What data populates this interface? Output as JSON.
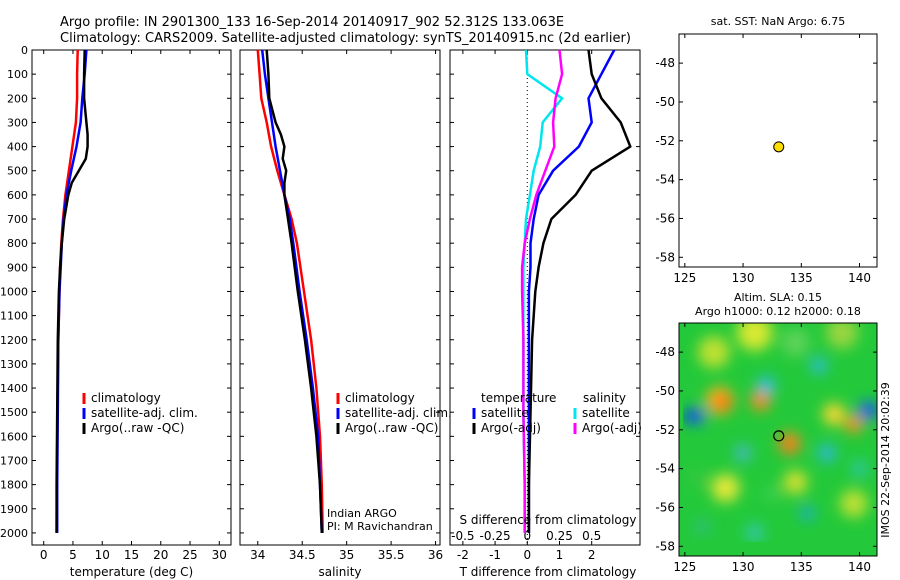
{
  "header": {
    "line1": "Argo profile: IN 2901300_133 16-Sep-2014 20140917_902 52.312S 133.063E",
    "line2": "Climatology: CARS2009. Satellite-adjusted climatology: synTS_20140915.nc (2d earlier)"
  },
  "depth_ticks": [
    0,
    100,
    200,
    300,
    400,
    500,
    600,
    700,
    800,
    900,
    1000,
    1100,
    1200,
    1300,
    1400,
    1500,
    1600,
    1700,
    1800,
    1900,
    2000
  ],
  "colors": {
    "climatology": "#ff0000",
    "satellite": "#0000ff",
    "argo": "#000000",
    "salinity_sat": "#00e5ee",
    "salinity_argo": "#ff00ff",
    "float_marker": "#ffdd00"
  },
  "chart_data": [
    {
      "type": "line",
      "xlabel": "temperature (deg C)",
      "xlim": [
        -2,
        32
      ],
      "ylim": [
        2050,
        0
      ],
      "xticks": [
        0,
        5,
        10,
        15,
        20,
        25,
        30
      ],
      "legend": [
        "climatology",
        "satellite-adj. clim.",
        "Argo(..raw -QC)"
      ],
      "series": [
        {
          "name": "climatology",
          "color": "#ff0000",
          "depth": [
            0,
            100,
            200,
            300,
            400,
            500,
            600,
            700,
            800,
            900,
            1000,
            1200,
            1500,
            1800,
            2000
          ],
          "values": [
            5.8,
            5.7,
            5.7,
            5.5,
            4.9,
            4.3,
            3.7,
            3.3,
            3.0,
            2.8,
            2.7,
            2.5,
            2.35,
            2.25,
            2.2
          ]
        },
        {
          "name": "satellite-adj. clim.",
          "color": "#0000ff",
          "depth": [
            0,
            100,
            200,
            300,
            400,
            500,
            600,
            700,
            800,
            900,
            1000,
            1200,
            1500,
            1800,
            2000
          ],
          "values": [
            7.3,
            7.0,
            6.6,
            6.3,
            5.6,
            4.7,
            3.9,
            3.4,
            3.1,
            2.9,
            2.7,
            2.5,
            2.4,
            2.3,
            2.3
          ]
        },
        {
          "name": "Argo(..raw -QC)",
          "color": "#000000",
          "depth": [
            0,
            100,
            200,
            300,
            350,
            400,
            450,
            500,
            550,
            600,
            700,
            800,
            900,
            1000,
            1200,
            1500,
            1800,
            2000
          ],
          "values": [
            7.0,
            6.9,
            6.9,
            7.3,
            7.5,
            7.5,
            7.2,
            6.0,
            4.8,
            4.2,
            3.5,
            3.1,
            2.8,
            2.6,
            2.4,
            2.3,
            2.2,
            2.2
          ]
        }
      ]
    },
    {
      "type": "line",
      "xlabel": "salinity",
      "xlim": [
        33.8,
        36.05
      ],
      "ylim": [
        2050,
        0
      ],
      "xticks": [
        34,
        34.5,
        35,
        35.5,
        36
      ],
      "legend": [
        "climatology",
        "satellite-adj. clim.",
        "Argo(..raw -QC)"
      ],
      "annotation": [
        "Indian ARGO",
        "PI: M Ravichandran"
      ],
      "series": [
        {
          "name": "climatology",
          "color": "#ff0000",
          "depth": [
            0,
            100,
            200,
            300,
            400,
            500,
            600,
            700,
            800,
            1000,
            1200,
            1400,
            1600,
            1800,
            2000
          ],
          "values": [
            34.0,
            34.02,
            34.04,
            34.1,
            34.15,
            34.22,
            34.3,
            34.38,
            34.44,
            34.52,
            34.6,
            34.66,
            34.7,
            34.72,
            34.73
          ]
        },
        {
          "name": "satellite-adj. clim.",
          "color": "#0000ff",
          "depth": [
            0,
            100,
            200,
            300,
            400,
            500,
            600,
            700,
            800,
            1000,
            1200,
            1400,
            1600,
            1800,
            2000
          ],
          "values": [
            34.05,
            34.08,
            34.12,
            34.16,
            34.2,
            34.25,
            34.3,
            34.36,
            34.4,
            34.47,
            34.55,
            34.62,
            34.68,
            34.7,
            34.72
          ]
        },
        {
          "name": "Argo(..raw -QC)",
          "color": "#000000",
          "depth": [
            0,
            100,
            200,
            300,
            350,
            400,
            450,
            500,
            550,
            600,
            700,
            800,
            1000,
            1200,
            1400,
            1600,
            1800,
            2000
          ],
          "values": [
            34.1,
            34.12,
            34.13,
            34.2,
            34.26,
            34.3,
            34.28,
            34.32,
            34.3,
            34.3,
            34.34,
            34.38,
            34.45,
            34.53,
            34.6,
            34.66,
            34.7,
            34.72
          ]
        }
      ]
    },
    {
      "type": "line",
      "xlabel": "T difference from climatology",
      "xlabel2": "S difference from climatology",
      "xlim": [
        -2.4,
        3.5
      ],
      "ylim": [
        2050,
        0
      ],
      "xticks": [
        -2,
        -1,
        0,
        1,
        2
      ],
      "xticks_salinity": [
        -0.5,
        -0.25,
        0,
        0.25,
        0.5
      ],
      "legend_groups": [
        {
          "title": "temperature",
          "items": [
            "satellite",
            "Argo(-adj)"
          ]
        },
        {
          "title": "salinity",
          "items": [
            "satellite",
            "Argo(-adj)"
          ]
        }
      ],
      "series": [
        {
          "name": "satellite",
          "group": "temperature",
          "color": "#0000ff",
          "depth": [
            0,
            100,
            200,
            300,
            400,
            500,
            600,
            700,
            800,
            900,
            1000,
            1200,
            1500,
            1800,
            2000
          ],
          "values": [
            2.7,
            2.3,
            1.9,
            2.0,
            1.6,
            0.8,
            0.35,
            0.2,
            0.1,
            0.1,
            0.05,
            0.05,
            0.05,
            0.05,
            0.05
          ]
        },
        {
          "name": "Argo(-adj)",
          "group": "temperature",
          "color": "#000000",
          "depth": [
            0,
            100,
            200,
            300,
            400,
            500,
            600,
            700,
            800,
            900,
            1000,
            1200,
            1500,
            1800,
            2000
          ],
          "values": [
            1.9,
            2.0,
            2.3,
            2.9,
            3.2,
            2.0,
            1.5,
            0.75,
            0.5,
            0.35,
            0.25,
            0.15,
            0.1,
            0.05,
            0.05
          ]
        },
        {
          "name": "satellite",
          "group": "salinity",
          "color": "#00e5ee",
          "depth": [
            0,
            100,
            200,
            300,
            400,
            500,
            600,
            700,
            800,
            900,
            1000,
            1200,
            1500,
            1800,
            2000
          ],
          "values": [
            -0.01,
            0.0,
            0.27,
            0.12,
            0.1,
            0.05,
            0.02,
            -0.01,
            -0.02,
            -0.03,
            -0.03,
            -0.03,
            -0.03,
            -0.02,
            -0.02
          ]
        },
        {
          "name": "Argo(-adj)",
          "group": "salinity",
          "color": "#ff00ff",
          "depth": [
            0,
            100,
            200,
            300,
            400,
            500,
            600,
            700,
            800,
            900,
            1000,
            1200,
            1500,
            1800,
            2000
          ],
          "values": [
            0.25,
            0.27,
            0.22,
            0.2,
            0.21,
            0.14,
            0.07,
            0.02,
            -0.02,
            -0.04,
            -0.04,
            -0.03,
            -0.03,
            -0.02,
            -0.02
          ]
        }
      ]
    },
    {
      "type": "scatter",
      "title": "sat. SST: NaN  Argo: 6.75",
      "xlim": [
        124.5,
        141.5
      ],
      "ylim": [
        -58.5,
        -46.5
      ],
      "xticks": [
        125,
        130,
        135,
        140
      ],
      "yticks": [
        -48,
        -50,
        -52,
        -54,
        -56,
        -58
      ],
      "points": [
        {
          "lon": 133.063,
          "lat": -52.312
        }
      ]
    },
    {
      "type": "heatmap",
      "title1": "Altim. SLA: 0.15",
      "title2": "Argo h1000: 0.12 h2000: 0.18",
      "xlim": [
        124.5,
        141.5
      ],
      "ylim": [
        -58.5,
        -46.5
      ],
      "xticks": [
        125,
        130,
        135,
        140
      ],
      "yticks": [
        -48,
        -50,
        -52,
        -54,
        -56,
        -58
      ],
      "points": [
        {
          "lon": 133.063,
          "lat": -52.312
        }
      ],
      "side_label": "IMOS 22-Sep-2014 20:02:39"
    }
  ]
}
